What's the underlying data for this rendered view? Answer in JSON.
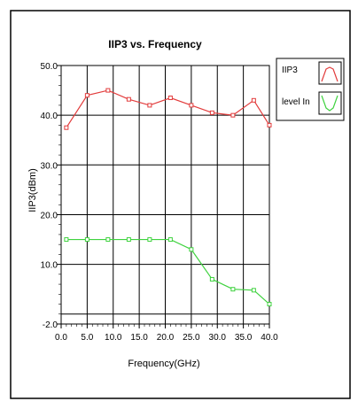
{
  "chart_data": {
    "type": "line",
    "title": "IIP3 vs. Frequency",
    "xlabel": "Frequency(GHz)",
    "ylabel": "IIP3(dBm)",
    "xlim": [
      0.0,
      40.0
    ],
    "ylim": [
      -2.0,
      50.0
    ],
    "xticks": [
      "0.0",
      "5.0",
      "10.0",
      "15.0",
      "20.0",
      "25.0",
      "30.0",
      "35.0",
      "40.0"
    ],
    "yticks": [
      "50.0",
      "40.0",
      "30.0",
      "20.0",
      "10.0",
      "-2.0"
    ],
    "grid": "horizontal and vertical",
    "legend_position": "right",
    "series": [
      {
        "name": "IIP3",
        "color": "#e23b3b",
        "x": [
          1,
          5,
          9,
          13,
          17,
          21,
          25,
          29,
          33,
          37,
          40
        ],
        "y": [
          37.5,
          44,
          45,
          43.2,
          42,
          43.5,
          42,
          40.5,
          40,
          43,
          38
        ]
      },
      {
        "name": "level In",
        "color": "#3fd23f",
        "x": [
          1,
          5,
          9,
          13,
          17,
          21,
          25,
          29,
          33,
          37,
          40
        ],
        "y": [
          15,
          15,
          15,
          15,
          15,
          15,
          13,
          7,
          5,
          4.8,
          2
        ]
      }
    ]
  }
}
